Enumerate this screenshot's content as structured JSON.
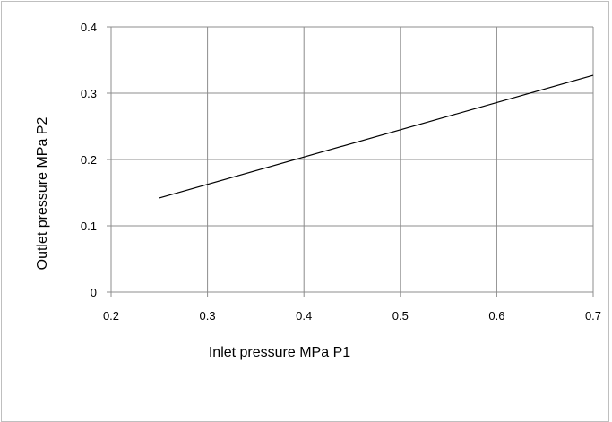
{
  "chart_data": {
    "type": "line",
    "title": "",
    "xlabel": "Inlet pressure MPa P1",
    "ylabel": "Outlet pressure MPa P2",
    "xlim": [
      0.2,
      0.7
    ],
    "ylim": [
      0,
      0.4
    ],
    "xticks": [
      "0.2",
      "0.3",
      "0.4",
      "0.5",
      "0.6",
      "0.7"
    ],
    "yticks": [
      "0",
      "0.1",
      "0.2",
      "0.3",
      "0.4"
    ],
    "grid": true,
    "legend": "none",
    "series": [
      {
        "color": "#000000",
        "x": [
          0.25,
          0.7
        ],
        "y": [
          0.142,
          0.327
        ]
      }
    ]
  }
}
